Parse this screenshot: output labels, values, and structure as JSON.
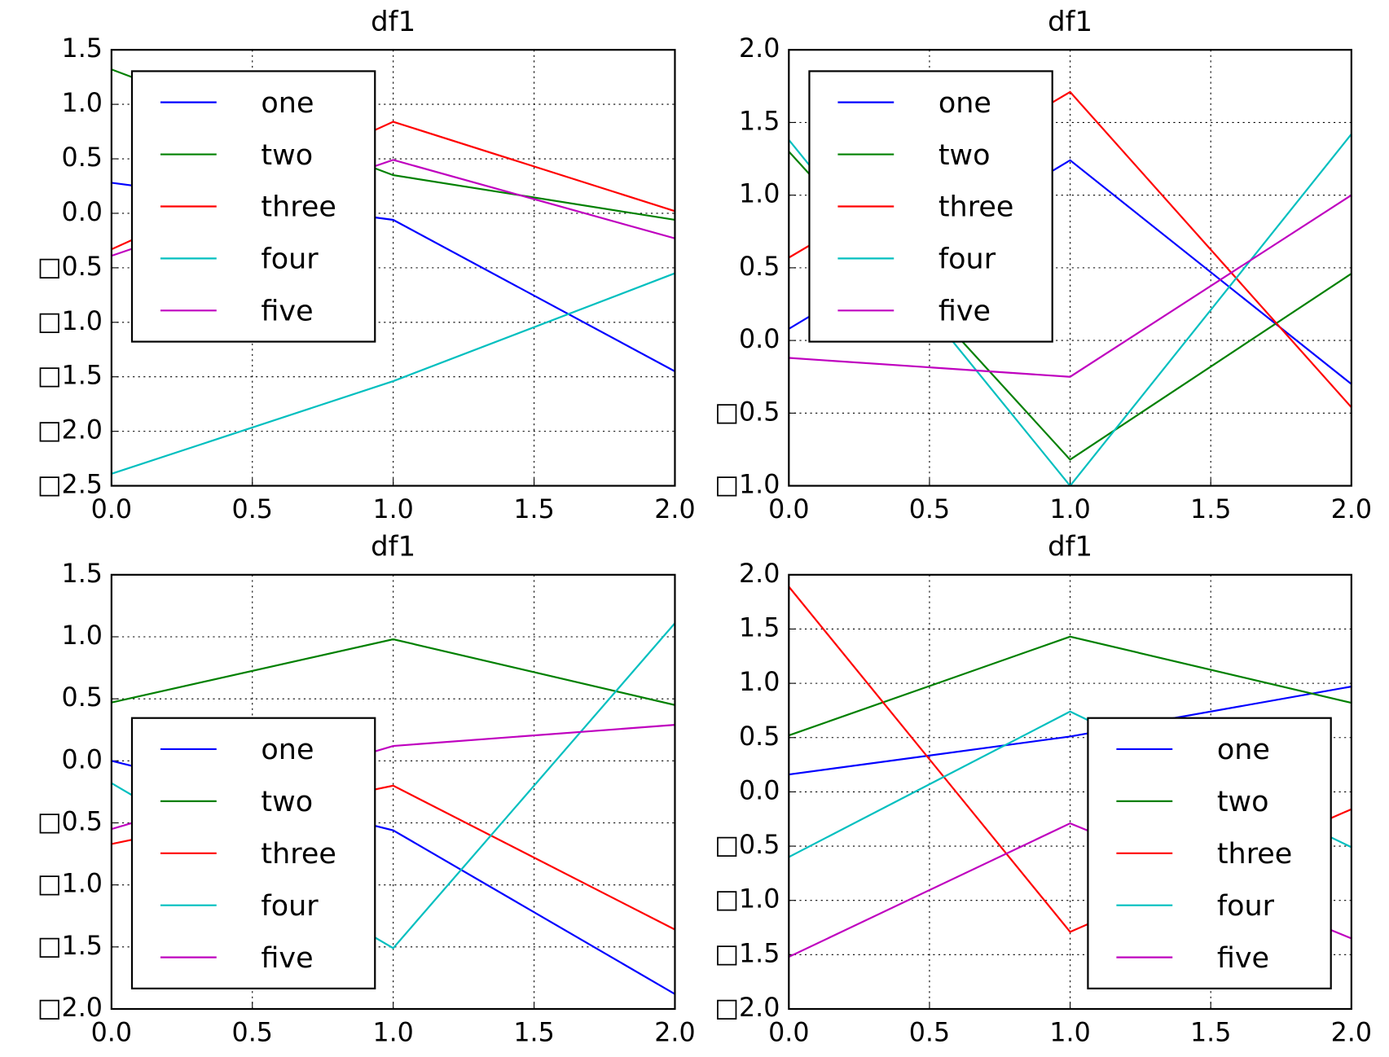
{
  "chart_data": [
    {
      "type": "line",
      "title": "df1",
      "x": [
        0,
        1,
        2
      ],
      "xlim": [
        0,
        2
      ],
      "ylim": [
        -2.5,
        1.5
      ],
      "xticks": [
        {
          "value": 0,
          "label": "0.0"
        },
        0.5,
        {
          "value": 1,
          "label": "1.0"
        },
        1.5,
        {
          "value": 2,
          "label": "2.0"
        }
      ],
      "yticks": [
        {
          "value": -2.5,
          "label": "□2.5"
        },
        {
          "value": -2,
          "label": "□2.0"
        },
        {
          "value": -1.5,
          "label": "□1.5"
        },
        {
          "value": -1,
          "label": "□1.0"
        },
        {
          "value": -0.5,
          "label": "□0.5"
        },
        {
          "value": 0,
          "label": "0.0"
        },
        0.5,
        {
          "value": 1,
          "label": "1.0"
        },
        1.5
      ],
      "grid": true,
      "legend": "upper left",
      "series": [
        {
          "name": "one",
          "color": "#0000ff",
          "values": [
            0.28,
            -0.06,
            -1.45
          ]
        },
        {
          "name": "two",
          "color": "#008000",
          "values": [
            1.32,
            0.35,
            -0.06
          ]
        },
        {
          "name": "three",
          "color": "#ff0000",
          "values": [
            -0.33,
            0.84,
            0.02
          ]
        },
        {
          "name": "four",
          "color": "#00bfbf",
          "values": [
            -2.39,
            -1.54,
            -0.55
          ]
        },
        {
          "name": "five",
          "color": "#bf00bf",
          "values": [
            -0.39,
            0.49,
            -0.23
          ]
        }
      ]
    },
    {
      "type": "line",
      "title": "df1",
      "x": [
        0,
        1,
        2
      ],
      "xlim": [
        0,
        2
      ],
      "ylim": [
        -1,
        2
      ],
      "xticks": [
        {
          "value": 0,
          "label": "0.0"
        },
        0.5,
        {
          "value": 1,
          "label": "1.0"
        },
        1.5,
        {
          "value": 2,
          "label": "2.0"
        }
      ],
      "yticks": [
        {
          "value": -1,
          "label": "□1.0"
        },
        {
          "value": -0.5,
          "label": "□0.5"
        },
        {
          "value": 0,
          "label": "0.0"
        },
        0.5,
        {
          "value": 1,
          "label": "1.0"
        },
        1.5,
        {
          "value": 2,
          "label": "2.0"
        }
      ],
      "grid": true,
      "legend": "upper left",
      "series": [
        {
          "name": "one",
          "color": "#0000ff",
          "values": [
            0.08,
            1.24,
            -0.3
          ]
        },
        {
          "name": "two",
          "color": "#008000",
          "values": [
            1.3,
            -0.82,
            0.46
          ]
        },
        {
          "name": "three",
          "color": "#ff0000",
          "values": [
            0.57,
            1.71,
            -0.46
          ]
        },
        {
          "name": "four",
          "color": "#00bfbf",
          "values": [
            1.38,
            -1.0,
            1.42
          ]
        },
        {
          "name": "five",
          "color": "#bf00bf",
          "values": [
            -0.12,
            -0.25,
            1.0
          ]
        }
      ]
    },
    {
      "type": "line",
      "title": "df1",
      "x": [
        0,
        1,
        2
      ],
      "xlim": [
        0,
        2
      ],
      "ylim": [
        -2,
        1.5
      ],
      "xticks": [
        {
          "value": 0,
          "label": "0.0"
        },
        0.5,
        {
          "value": 1,
          "label": "1.0"
        },
        1.5,
        {
          "value": 2,
          "label": "2.0"
        }
      ],
      "yticks": [
        {
          "value": -2,
          "label": "□2.0"
        },
        {
          "value": -1.5,
          "label": "□1.5"
        },
        {
          "value": -1,
          "label": "□1.0"
        },
        {
          "value": -0.5,
          "label": "□0.5"
        },
        {
          "value": 0,
          "label": "0.0"
        },
        0.5,
        {
          "value": 1,
          "label": "1.0"
        },
        1.5
      ],
      "grid": true,
      "legend": "lower left",
      "series": [
        {
          "name": "one",
          "color": "#0000ff",
          "values": [
            0.0,
            -0.56,
            -1.88
          ]
        },
        {
          "name": "two",
          "color": "#008000",
          "values": [
            0.47,
            0.98,
            0.45
          ]
        },
        {
          "name": "three",
          "color": "#ff0000",
          "values": [
            -0.67,
            -0.2,
            -1.36
          ]
        },
        {
          "name": "four",
          "color": "#00bfbf",
          "values": [
            -0.18,
            -1.51,
            1.11
          ]
        },
        {
          "name": "five",
          "color": "#bf00bf",
          "values": [
            -0.55,
            0.12,
            0.29
          ]
        }
      ]
    },
    {
      "type": "line",
      "title": "df1",
      "x": [
        0,
        1,
        2
      ],
      "xlim": [
        0,
        2
      ],
      "ylim": [
        -2,
        2
      ],
      "xticks": [
        {
          "value": 0,
          "label": "0.0"
        },
        0.5,
        {
          "value": 1,
          "label": "1.0"
        },
        1.5,
        {
          "value": 2,
          "label": "2.0"
        }
      ],
      "yticks": [
        {
          "value": -2,
          "label": "□2.0"
        },
        {
          "value": -1.5,
          "label": "□1.5"
        },
        {
          "value": -1,
          "label": "□1.0"
        },
        {
          "value": -0.5,
          "label": "□0.5"
        },
        {
          "value": 0,
          "label": "0.0"
        },
        0.5,
        {
          "value": 1,
          "label": "1.0"
        },
        1.5,
        {
          "value": 2,
          "label": "2.0"
        }
      ],
      "grid": true,
      "legend": "lower right",
      "series": [
        {
          "name": "one",
          "color": "#0000ff",
          "values": [
            0.16,
            0.51,
            0.97
          ]
        },
        {
          "name": "two",
          "color": "#008000",
          "values": [
            0.52,
            1.43,
            0.82
          ]
        },
        {
          "name": "three",
          "color": "#ff0000",
          "values": [
            1.89,
            -1.29,
            -0.16
          ]
        },
        {
          "name": "four",
          "color": "#00bfbf",
          "values": [
            -0.6,
            0.74,
            -0.51
          ]
        },
        {
          "name": "five",
          "color": "#bf00bf",
          "values": [
            -1.52,
            -0.29,
            -1.35
          ]
        }
      ]
    }
  ]
}
